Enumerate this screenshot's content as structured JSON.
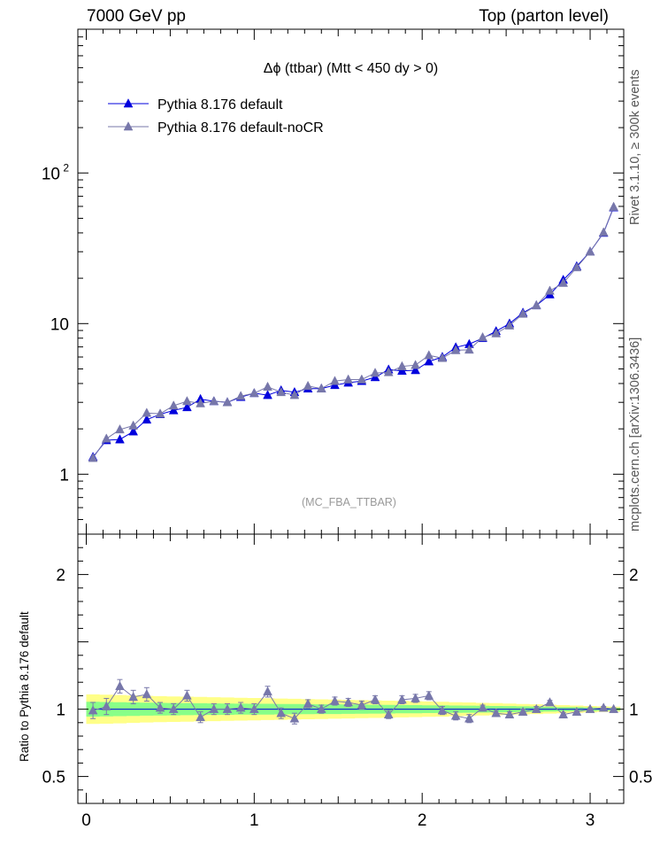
{
  "header": {
    "left": "7000 GeV pp",
    "right": "Top (parton level)"
  },
  "side": {
    "top": "Rivet 3.1.10, ≥ 300k events",
    "bottom": "mcplots.cern.ch [arXiv:1306.3436]"
  },
  "chart_data": [
    {
      "type": "line",
      "title": "Δϕ (ttbar) (Mtt < 450 dy > 0)",
      "watermark": "(MC_FBA_TTBAR)",
      "yscale": "log",
      "xlim": [
        -0.05,
        3.2
      ],
      "ylim": [
        0.4,
        900
      ],
      "xlabel": "",
      "ylabel": "",
      "ytick_labels": [
        "1",
        "10",
        "10^2"
      ],
      "legend_position": "top-left",
      "x": [
        0.04,
        0.12,
        0.2,
        0.28,
        0.36,
        0.44,
        0.52,
        0.6,
        0.68,
        0.76,
        0.84,
        0.92,
        1.0,
        1.08,
        1.16,
        1.24,
        1.32,
        1.4,
        1.48,
        1.56,
        1.64,
        1.72,
        1.8,
        1.88,
        1.96,
        2.04,
        2.12,
        2.2,
        2.28,
        2.36,
        2.44,
        2.52,
        2.6,
        2.68,
        2.76,
        2.84,
        2.92,
        3.0,
        3.08,
        3.14
      ],
      "series": [
        {
          "name": "Pythia 8.176 default",
          "color": "#0000dd",
          "values": [
            1.3,
            1.68,
            1.7,
            1.92,
            2.3,
            2.5,
            2.65,
            2.78,
            3.15,
            3.05,
            3.0,
            3.25,
            3.45,
            3.35,
            3.6,
            3.5,
            3.7,
            3.7,
            3.9,
            4.05,
            4.15,
            4.4,
            4.95,
            4.85,
            4.9,
            5.6,
            6.0,
            6.95,
            7.3,
            8.0,
            8.9,
            10.0,
            11.8,
            13.2,
            15.6,
            19.5,
            24.0,
            30.0,
            40.0,
            59.0
          ]
        },
        {
          "name": "Pythia 8.176 default-noCR",
          "color": "#7777aa",
          "values": [
            1.28,
            1.72,
            1.98,
            2.1,
            2.55,
            2.52,
            2.85,
            3.05,
            2.95,
            3.05,
            3.0,
            3.3,
            3.45,
            3.8,
            3.5,
            3.35,
            3.85,
            3.7,
            4.15,
            4.25,
            4.25,
            4.7,
            4.75,
            5.2,
            5.3,
            6.15,
            5.9,
            6.65,
            6.7,
            8.1,
            8.6,
            9.7,
            11.6,
            13.2,
            16.5,
            18.6,
            23.6,
            30.0,
            40.3,
            59.5
          ]
        }
      ]
    },
    {
      "type": "line",
      "title": "",
      "ylabel": "Ratio to Pythia 8.176 default",
      "xlabel": "",
      "xlim": [
        -0.05,
        3.2
      ],
      "ylim": [
        0.3,
        2.3
      ],
      "x_ticks": [
        0,
        1,
        2,
        3
      ],
      "y_ticks": [
        "0.5",
        "1",
        "2"
      ],
      "reference_line": 1.0,
      "band_green_half_width": [
        0.055,
        0.053,
        0.052,
        0.05,
        0.048,
        0.047,
        0.046,
        0.045,
        0.044,
        0.043,
        0.042,
        0.041,
        0.04,
        0.04,
        0.039,
        0.038,
        0.037,
        0.036,
        0.036,
        0.035,
        0.034,
        0.033,
        0.032,
        0.031,
        0.03,
        0.029,
        0.028,
        0.027,
        0.026,
        0.025,
        0.024,
        0.023,
        0.021,
        0.02,
        0.018,
        0.016,
        0.015,
        0.013,
        0.011,
        0.01
      ],
      "band_yellow_half_width": [
        0.11,
        0.108,
        0.105,
        0.102,
        0.099,
        0.097,
        0.095,
        0.093,
        0.091,
        0.089,
        0.087,
        0.085,
        0.083,
        0.081,
        0.079,
        0.077,
        0.075,
        0.073,
        0.071,
        0.069,
        0.067,
        0.065,
        0.063,
        0.061,
        0.059,
        0.057,
        0.055,
        0.052,
        0.05,
        0.047,
        0.045,
        0.042,
        0.039,
        0.036,
        0.033,
        0.03,
        0.027,
        0.024,
        0.021,
        0.019
      ],
      "series": [
        {
          "name": "Pythia 8.176 default-noCR",
          "color": "#7777aa",
          "values": [
            0.99,
            1.02,
            1.17,
            1.09,
            1.11,
            1.01,
            1.0,
            1.1,
            0.94,
            1.0,
            1.0,
            1.01,
            1.0,
            1.13,
            0.97,
            0.93,
            1.04,
            1.0,
            1.06,
            1.05,
            1.03,
            1.07,
            0.96,
            1.07,
            1.08,
            1.1,
            0.99,
            0.95,
            0.93,
            1.01,
            0.97,
            0.96,
            0.98,
            1.0,
            1.05,
            0.96,
            0.98,
            1.0,
            1.01,
            1.0
          ],
          "errors": [
            0.06,
            0.06,
            0.05,
            0.05,
            0.05,
            0.04,
            0.04,
            0.04,
            0.04,
            0.04,
            0.04,
            0.04,
            0.04,
            0.04,
            0.04,
            0.04,
            0.03,
            0.03,
            0.03,
            0.03,
            0.03,
            0.03,
            0.03,
            0.03,
            0.03,
            0.03,
            0.03,
            0.03,
            0.03,
            0.02,
            0.02,
            0.02,
            0.02,
            0.02,
            0.015,
            0.015,
            0.01,
            0.01,
            0.01,
            0.01
          ]
        }
      ]
    }
  ]
}
